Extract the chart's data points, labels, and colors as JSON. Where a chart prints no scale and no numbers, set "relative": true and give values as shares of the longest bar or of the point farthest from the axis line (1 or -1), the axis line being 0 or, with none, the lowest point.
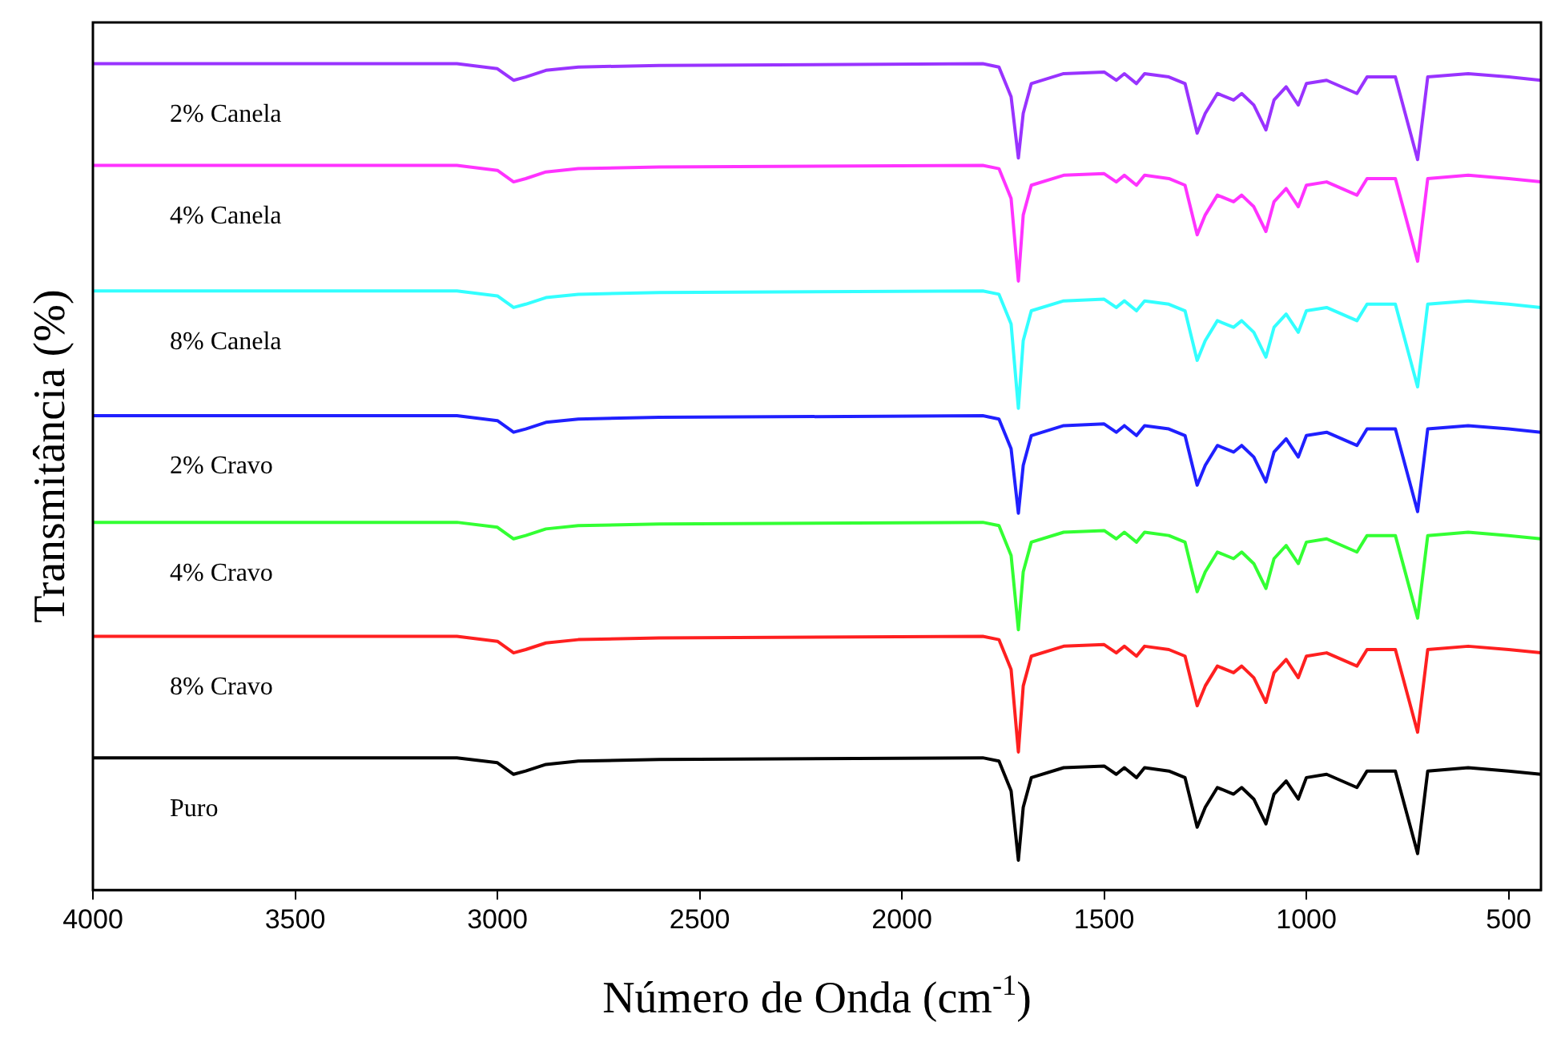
{
  "chart_data": {
    "type": "line",
    "relative": true,
    "xlabel": "Número de Onda (cm$^{-1}$)",
    "ylabel": "Transmitância (%)",
    "x": [
      4000,
      3100,
      3000,
      2960,
      2930,
      2880,
      2800,
      2600,
      1800,
      1760,
      1730,
      1712,
      1700,
      1680,
      1600,
      1500,
      1470,
      1450,
      1420,
      1400,
      1340,
      1300,
      1270,
      1250,
      1220,
      1180,
      1160,
      1130,
      1100,
      1080,
      1050,
      1020,
      1000,
      950,
      875,
      850,
      780,
      725,
      700,
      600,
      500,
      420
    ],
    "xlim": [
      4000,
      420
    ],
    "xticks": [
      4000,
      3500,
      3000,
      2500,
      2000,
      1500,
      1000,
      500
    ],
    "grid": false,
    "legend": false,
    "marker": "none",
    "line_style": "solid",
    "series": [
      {
        "name": "2% Canela",
        "color": "#9933ff",
        "values": [
          1,
          1,
          0.994,
          0.98,
          0.984,
          0.992,
          0.996,
          0.998,
          1,
          0.996,
          0.96,
          0.886,
          0.94,
          0.976,
          0.988,
          0.99,
          0.98,
          0.988,
          0.976,
          0.988,
          0.984,
          0.976,
          0.916,
          0.94,
          0.964,
          0.956,
          0.964,
          0.95,
          0.92,
          0.956,
          0.972,
          0.95,
          0.976,
          0.98,
          0.964,
          0.984,
          0.984,
          0.884,
          0.984,
          0.988,
          0.984,
          0.98
        ]
      },
      {
        "name": "4% Canela",
        "color": "#ff33ff",
        "values": [
          0.877,
          0.877,
          0.871,
          0.857,
          0.861,
          0.869,
          0.873,
          0.875,
          0.877,
          0.873,
          0.837,
          0.737,
          0.817,
          0.853,
          0.865,
          0.867,
          0.857,
          0.865,
          0.853,
          0.865,
          0.861,
          0.853,
          0.793,
          0.817,
          0.841,
          0.833,
          0.841,
          0.827,
          0.797,
          0.833,
          0.849,
          0.827,
          0.853,
          0.857,
          0.841,
          0.861,
          0.861,
          0.761,
          0.861,
          0.865,
          0.861,
          0.857
        ]
      },
      {
        "name": "8% Canela",
        "color": "#33ffff",
        "values": [
          0.725,
          0.725,
          0.719,
          0.705,
          0.709,
          0.717,
          0.721,
          0.723,
          0.725,
          0.721,
          0.685,
          0.583,
          0.665,
          0.701,
          0.713,
          0.715,
          0.705,
          0.713,
          0.701,
          0.713,
          0.709,
          0.701,
          0.641,
          0.665,
          0.689,
          0.681,
          0.689,
          0.675,
          0.645,
          0.681,
          0.697,
          0.675,
          0.701,
          0.705,
          0.689,
          0.709,
          0.709,
          0.609,
          0.709,
          0.713,
          0.709,
          0.705
        ]
      },
      {
        "name": "2% Cravo",
        "color": "#2020ff",
        "values": [
          0.574,
          0.574,
          0.568,
          0.554,
          0.558,
          0.566,
          0.57,
          0.572,
          0.574,
          0.57,
          0.534,
          0.456,
          0.514,
          0.55,
          0.562,
          0.564,
          0.554,
          0.562,
          0.55,
          0.562,
          0.558,
          0.55,
          0.49,
          0.514,
          0.538,
          0.53,
          0.538,
          0.524,
          0.494,
          0.53,
          0.546,
          0.524,
          0.55,
          0.554,
          0.538,
          0.558,
          0.558,
          0.458,
          0.558,
          0.562,
          0.558,
          0.554
        ]
      },
      {
        "name": "4% Cravo",
        "color": "#33ff33",
        "values": [
          0.445,
          0.445,
          0.439,
          0.425,
          0.429,
          0.437,
          0.441,
          0.443,
          0.445,
          0.441,
          0.405,
          0.315,
          0.385,
          0.421,
          0.433,
          0.435,
          0.425,
          0.433,
          0.421,
          0.433,
          0.429,
          0.421,
          0.361,
          0.385,
          0.409,
          0.401,
          0.409,
          0.395,
          0.365,
          0.401,
          0.417,
          0.395,
          0.421,
          0.425,
          0.409,
          0.429,
          0.429,
          0.329,
          0.429,
          0.433,
          0.429,
          0.425
        ]
      },
      {
        "name": "8% Cravo",
        "color": "#ff2020",
        "values": [
          0.307,
          0.307,
          0.301,
          0.287,
          0.291,
          0.299,
          0.303,
          0.305,
          0.307,
          0.303,
          0.267,
          0.167,
          0.247,
          0.283,
          0.295,
          0.297,
          0.287,
          0.295,
          0.283,
          0.295,
          0.291,
          0.283,
          0.223,
          0.247,
          0.271,
          0.263,
          0.271,
          0.257,
          0.227,
          0.263,
          0.279,
          0.257,
          0.283,
          0.287,
          0.271,
          0.291,
          0.291,
          0.191,
          0.291,
          0.295,
          0.291,
          0.287
        ]
      },
      {
        "name": "Puro",
        "color": "#000000",
        "values": [
          0.16,
          0.16,
          0.154,
          0.14,
          0.144,
          0.152,
          0.156,
          0.158,
          0.16,
          0.156,
          0.12,
          0.036,
          0.1,
          0.136,
          0.148,
          0.15,
          0.14,
          0.148,
          0.136,
          0.148,
          0.144,
          0.136,
          0.076,
          0.1,
          0.124,
          0.116,
          0.124,
          0.11,
          0.08,
          0.116,
          0.132,
          0.11,
          0.136,
          0.14,
          0.124,
          0.144,
          0.144,
          0.044,
          0.144,
          0.148,
          0.144,
          0.14
        ]
      }
    ]
  }
}
